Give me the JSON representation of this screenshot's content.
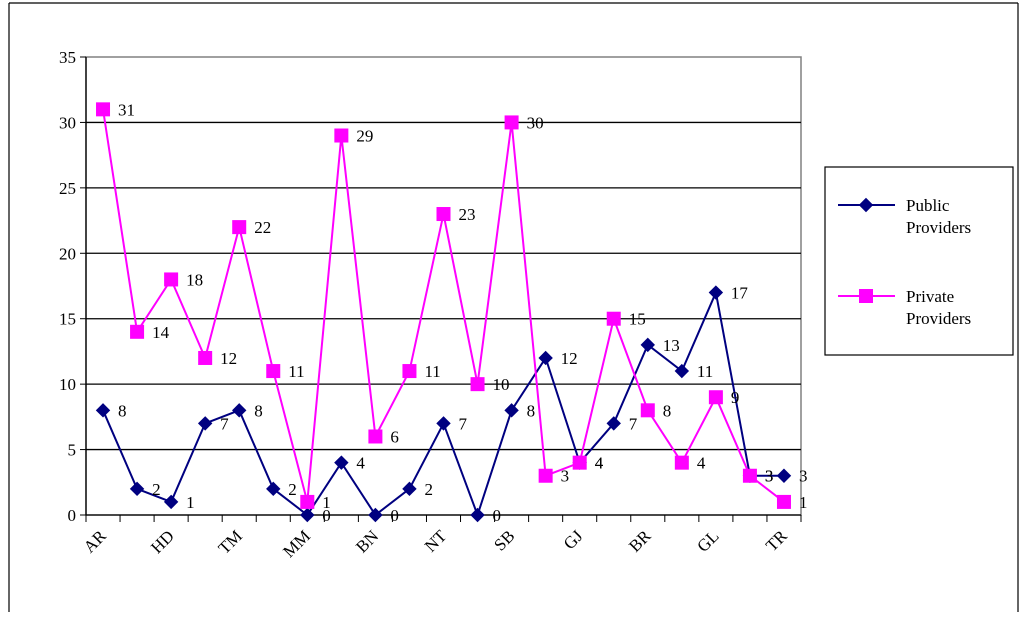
{
  "chart_data": {
    "type": "line",
    "title": "",
    "xlabel": "",
    "ylabel": "",
    "ylim": [
      0,
      35
    ],
    "yticks": [
      0,
      5,
      10,
      15,
      20,
      25,
      30,
      35
    ],
    "grid": "horizontal",
    "legend_position": "right",
    "categories": [
      "AR",
      "",
      "HD",
      "",
      "TM",
      "",
      "MM",
      "",
      "BN",
      "",
      "NT",
      "",
      "SB",
      "",
      "GJ",
      "",
      "BR",
      "",
      "GL",
      "",
      "TR"
    ],
    "category_tick_labels": [
      "AR",
      "HD",
      "TM",
      "MM",
      "BN",
      "NT",
      "SB",
      "GJ",
      "BR",
      "GL",
      "TR"
    ],
    "series": [
      {
        "name": "Public Providers",
        "name_lines": [
          "Public",
          "Providers"
        ],
        "color": "#000080",
        "marker": "diamond",
        "values": [
          8,
          2,
          1,
          7,
          8,
          2,
          0,
          4,
          0,
          2,
          7,
          0,
          8,
          12,
          4,
          7,
          13,
          11,
          17,
          3,
          3
        ]
      },
      {
        "name": "Private Providers",
        "name_lines": [
          "Private",
          "Providers"
        ],
        "color": "#FF00FF",
        "marker": "square",
        "values": [
          31,
          14,
          18,
          12,
          22,
          11,
          1,
          29,
          6,
          11,
          23,
          10,
          30,
          3,
          4,
          15,
          8,
          4,
          9,
          3,
          1
        ]
      }
    ]
  }
}
